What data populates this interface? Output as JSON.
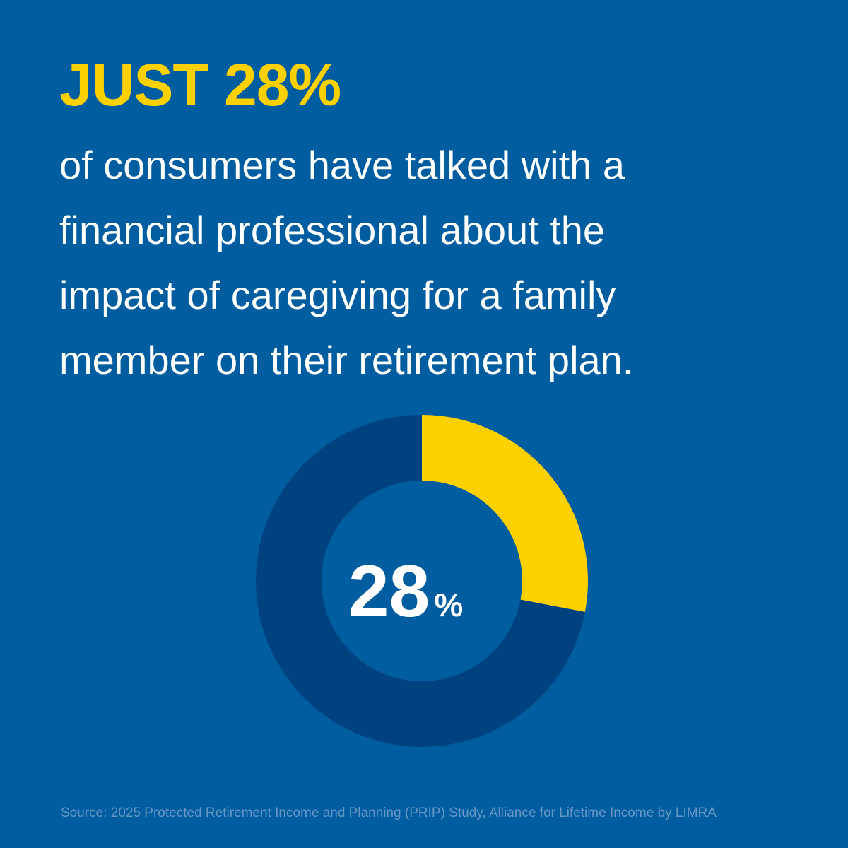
{
  "headline": "JUST 28%",
  "body_lines": [
    "of consumers have talked with a",
    "financial professional about the",
    "impact of caregiving for a family",
    "member on their retirement plan."
  ],
  "source": "Source: 2025 Protected Retirement Income and Planning (PRIP) Study, Alliance for Lifetime Income by LIMRA",
  "colors": {
    "background": "#005DA0",
    "accent": "#FDD000",
    "ring_remainder": "#00427F",
    "text": "#FFFFFF",
    "source_text": "#6A97C6"
  },
  "chart_data": {
    "type": "pie",
    "variant": "donut",
    "values": [
      28,
      72
    ],
    "highlight_index": 0,
    "center_value": "28",
    "center_unit": "%"
  }
}
